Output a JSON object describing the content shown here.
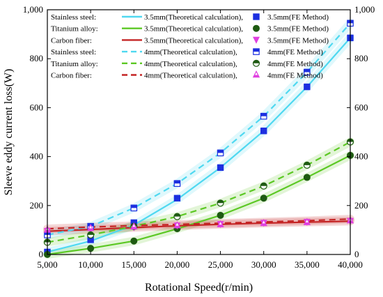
{
  "chart_data": {
    "type": "line",
    "xlabel": "Rotational Speed(r/min)",
    "ylabel": "Sleeve eddy current loss(W)",
    "xlim": [
      5000,
      40000
    ],
    "ylim": [
      0,
      1000
    ],
    "x_ticks": [
      "5,000",
      "10,000",
      "15,000",
      "20,000",
      "25,000",
      "30,000",
      "35,000",
      "40,000"
    ],
    "y_ticks": [
      "0",
      "200",
      "400",
      "600",
      "800",
      "1,000"
    ],
    "grid": false,
    "x": [
      5000,
      10000,
      15000,
      20000,
      25000,
      30000,
      35000,
      40000
    ],
    "series": [
      {
        "material": "Stainless steel:",
        "name": "3.5mm(Theoretical calculation),",
        "color": "#4fd8f0",
        "dash": "solid",
        "values": [
          10,
          55,
          120,
          225,
          355,
          505,
          685,
          885
        ]
      },
      {
        "material": "",
        "name": "3.5mm(FE Method)",
        "color": "#1c2fe0",
        "marker": "square",
        "values": [
          10,
          60,
          130,
          230,
          355,
          505,
          685,
          885
        ]
      },
      {
        "material": "Titanium alloy:",
        "name": "3.5mm(Theoretical calculation),",
        "color": "#5cc824",
        "dash": "solid",
        "values": [
          0,
          25,
          55,
          105,
          160,
          230,
          315,
          405
        ]
      },
      {
        "material": "",
        "name": "3.5mm(FE Method)",
        "color": "#1e5a12",
        "marker": "circle",
        "values": [
          0,
          25,
          55,
          105,
          160,
          230,
          315,
          405
        ]
      },
      {
        "material": "Carbon fiber:",
        "name": "3.5mm(Theoretical calculation),",
        "color": "#c42424",
        "dash": "solid",
        "values": [
          95,
          102,
          110,
          117,
          123,
          128,
          132,
          136
        ]
      },
      {
        "material": "",
        "name": "3.5mm(FE Method)",
        "color": "#e040e0",
        "marker": "triangle-down",
        "values": [
          95,
          102,
          110,
          117,
          123,
          128,
          132,
          136
        ]
      },
      {
        "material": "Stainless steel:",
        "name": "4mm(Theoretical calculation),",
        "color": "#4fd8f0",
        "dash": "dashed",
        "values": [
          80,
          115,
          190,
          290,
          415,
          565,
          745,
          945
        ]
      },
      {
        "material": "",
        "name": "4mm(FE Method)",
        "color": "#1c2fe0",
        "marker": "square-half",
        "values": [
          80,
          115,
          190,
          290,
          415,
          565,
          745,
          945
        ]
      },
      {
        "material": "Titanium alloy:",
        "name": "4mm(Theoretical calculation),",
        "color": "#5cc824",
        "dash": "dashed",
        "values": [
          50,
          80,
          115,
          155,
          210,
          280,
          365,
          460
        ]
      },
      {
        "material": "",
        "name": "4mm(FE Method)",
        "color": "#1e5a12",
        "marker": "circle-half",
        "values": [
          50,
          80,
          115,
          155,
          210,
          280,
          365,
          460
        ]
      },
      {
        "material": "Carbon fiber:",
        "name": "4mm(Theoretical calculation),",
        "color": "#c42424",
        "dash": "dashed",
        "values": [
          105,
          112,
          118,
          123,
          128,
          133,
          138,
          145
        ]
      },
      {
        "material": "",
        "name": "4mm(FE Method)",
        "color": "#e040e0",
        "marker": "triangle-half",
        "values": [
          100,
          107,
          113,
          118,
          122,
          127,
          131,
          138
        ]
      }
    ],
    "legend_rows": [
      {
        "material": "Stainless steel:",
        "line": 0,
        "marker": 1
      },
      {
        "material": "Titanium alloy:",
        "line": 2,
        "marker": 3
      },
      {
        "material": "Carbon fiber:",
        "line": 4,
        "marker": 5
      },
      {
        "material": "Stainless steel:",
        "line": 6,
        "marker": 7
      },
      {
        "material": "Titanium alloy:",
        "line": 8,
        "marker": 9
      },
      {
        "material": "Carbon fiber:",
        "line": 10,
        "marker": 11
      }
    ],
    "legend_position": "top-left"
  }
}
